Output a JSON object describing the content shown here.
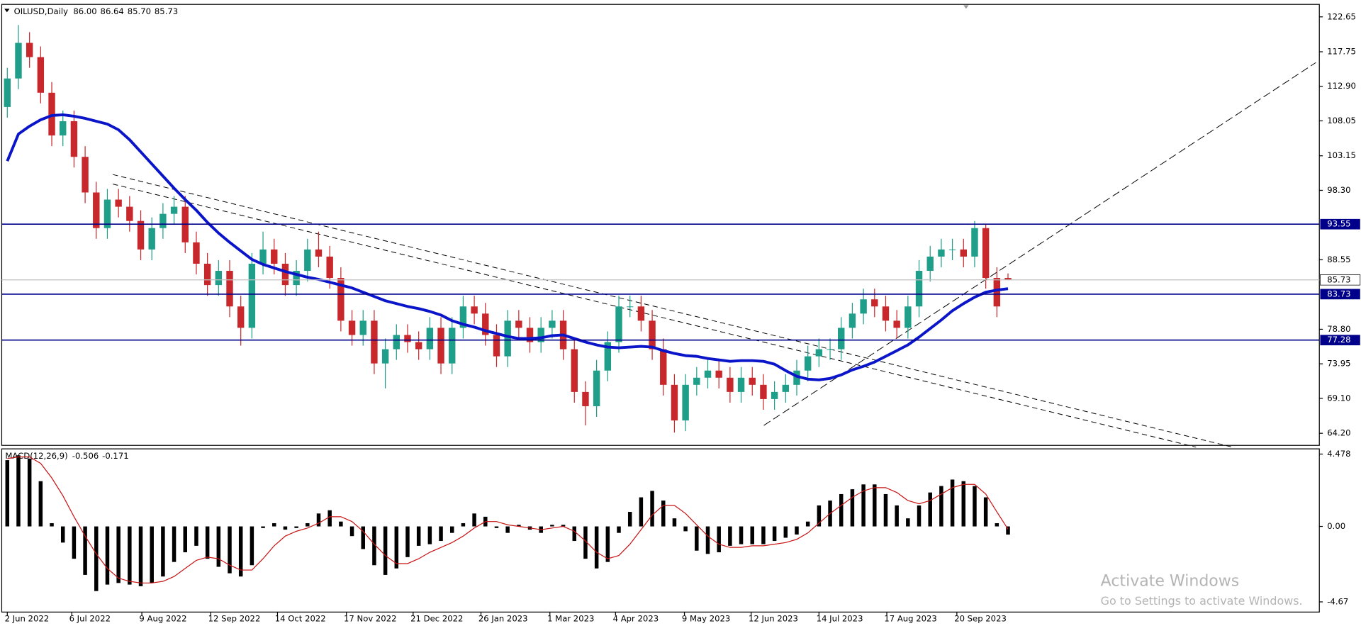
{
  "chart_data": [
    {
      "type": "candlestick",
      "title": "OILUSD,Daily",
      "last_bar_labels": [
        "86.00",
        "86.64",
        "85.70",
        "85.73"
      ],
      "up_color": "#1f9e8a",
      "down_color": "#c8282c",
      "xlim": [
        -0.5,
        118
      ],
      "ylim": [
        62.5,
        124.4
      ],
      "xticks": [
        {
          "value": 0,
          "label": "2 Jun 2022"
        },
        {
          "value": 5.8,
          "label": "6 Jul 2022"
        },
        {
          "value": 12.1,
          "label": "9 Aug 2022"
        },
        {
          "value": 18.3,
          "label": "12 Sep 2022"
        },
        {
          "value": 24.3,
          "label": "14 Oct 2022"
        },
        {
          "value": 30.5,
          "label": "17 Nov 2022"
        },
        {
          "value": 36.5,
          "label": "21 Dec 2022"
        },
        {
          "value": 42.6,
          "label": "26 Jan 2023"
        },
        {
          "value": 48.8,
          "label": "1 Mar 2023"
        },
        {
          "value": 54.7,
          "label": "4 Apr 2023"
        },
        {
          "value": 60.9,
          "label": "9 May 2023"
        },
        {
          "value": 66.9,
          "label": "12 Jun 2023"
        },
        {
          "value": 73.0,
          "label": "14 Jul 2023"
        },
        {
          "value": 79.1,
          "label": "17 Aug 2023"
        },
        {
          "value": 85.4,
          "label": "20 Sep 2023"
        }
      ],
      "yticks": [
        122.65,
        117.75,
        {
          "value": 112.9,
          "label": "112.90"
        },
        108.05,
        103.15,
        {
          "value": 98.3,
          "label": "98.30"
        },
        88.55,
        {
          "value": 78.8,
          "label": "78.80"
        },
        73.95,
        {
          "value": 69.1,
          "label": "69.10"
        },
        {
          "value": 64.2,
          "label": "64.20"
        }
      ],
      "open": [
        110,
        114,
        119,
        117,
        112,
        106,
        108,
        103,
        98,
        93,
        97,
        96,
        94,
        90,
        93,
        95,
        96,
        91,
        88,
        85,
        87,
        82,
        79,
        88,
        90,
        88,
        85,
        87,
        90,
        89,
        86,
        80,
        78,
        80,
        74,
        76,
        78,
        77,
        76,
        79,
        74,
        79,
        82,
        81,
        78,
        75,
        80,
        79,
        77,
        79,
        80,
        76,
        70,
        68,
        73,
        77,
        82,
        82,
        80,
        76,
        71,
        66,
        71,
        72,
        73,
        72,
        70,
        72,
        71,
        69,
        70,
        71,
        73,
        75,
        76,
        76,
        79,
        81,
        83,
        82,
        80,
        79,
        82,
        87,
        89,
        90,
        90,
        89,
        93,
        86,
        86.0
      ],
      "high": [
        115.5,
        121.5,
        120.5,
        118.5,
        113.5,
        109.5,
        109.5,
        104.5,
        99.5,
        98.5,
        98.5,
        97.5,
        95.5,
        94.5,
        96.5,
        97.5,
        97.5,
        92.5,
        89.5,
        88.5,
        88.5,
        83.5,
        89.5,
        92.5,
        91.5,
        89.5,
        88.5,
        91.5,
        92.5,
        90.5,
        87.5,
        81.5,
        81.5,
        81.5,
        77.5,
        79.5,
        79.5,
        78.5,
        80.5,
        80.5,
        80.5,
        83.5,
        83.5,
        82.5,
        79.5,
        81.5,
        81.5,
        80.5,
        80.5,
        81.5,
        81.5,
        77.5,
        71.5,
        74.5,
        78.5,
        83.5,
        83.5,
        83.5,
        81.5,
        77.5,
        72.5,
        72.5,
        73.5,
        74.5,
        74.5,
        73.5,
        73.5,
        73.5,
        72.5,
        71.5,
        72.5,
        74.5,
        76.5,
        77.5,
        77.5,
        80.5,
        82.5,
        84.5,
        84.5,
        83.5,
        81.5,
        83.5,
        88.5,
        90.5,
        91.5,
        91.5,
        91.5,
        94,
        93.5,
        87.5,
        86.64
      ],
      "low": [
        108.5,
        112.5,
        115.5,
        110.5,
        104.5,
        104.5,
        101.5,
        96.5,
        91.5,
        91.5,
        94.5,
        92.5,
        88.5,
        88.5,
        91.5,
        93.5,
        89.5,
        86.5,
        83.5,
        83.5,
        80.5,
        76.5,
        77.5,
        86.5,
        86.5,
        83.5,
        83.5,
        85.5,
        87.5,
        84.5,
        78.5,
        76.5,
        76.5,
        72.5,
        70.5,
        74.5,
        75.5,
        74.5,
        74.5,
        72.5,
        72.5,
        77.5,
        79.5,
        76.5,
        73.5,
        73.5,
        77.5,
        75.5,
        75.5,
        77.5,
        74.5,
        68.5,
        65.3,
        66.5,
        71.5,
        75.5,
        80.5,
        78.5,
        74.5,
        69.5,
        64.3,
        64.5,
        69.5,
        70.5,
        70.5,
        68.5,
        68.5,
        69.5,
        67.5,
        67.5,
        68.5,
        69.5,
        71.5,
        73.5,
        74.5,
        74.5,
        77.5,
        79.5,
        80.5,
        78.5,
        77.5,
        77.5,
        80.5,
        85.5,
        87.5,
        88.5,
        87.5,
        87.5,
        84.5,
        80.5,
        85.7
      ],
      "close": [
        114,
        119,
        117,
        112,
        106,
        108,
        103,
        98,
        93,
        97,
        96,
        94,
        90,
        93,
        95,
        96,
        91,
        88,
        85,
        87,
        82,
        79,
        88,
        90,
        88,
        85,
        87,
        90,
        89,
        86,
        80,
        78,
        80,
        74,
        76,
        78,
        77,
        76,
        79,
        74,
        79,
        82,
        81,
        78,
        75,
        80,
        79,
        77,
        79,
        80,
        76,
        70,
        68,
        73,
        77,
        82,
        82,
        80,
        76,
        71,
        66,
        71,
        72,
        73,
        72,
        70,
        72,
        71,
        69,
        70,
        71,
        73,
        75,
        76,
        76,
        79,
        81,
        83,
        82,
        80,
        79,
        82,
        87,
        89,
        90,
        90,
        89,
        93,
        86,
        82,
        85.73
      ],
      "ma": {
        "color": "#0a14c8",
        "values": [
          102.4,
          106.2,
          107.3,
          108.2,
          108.8,
          108.9,
          108.7,
          108.4,
          108.0,
          107.6,
          106.8,
          105.4,
          103.7,
          102.0,
          100.3,
          98.6,
          97.0,
          95.5,
          93.8,
          92.3,
          91.0,
          89.8,
          88.6,
          87.9,
          87.4,
          86.9,
          86.5,
          86.1,
          85.8,
          85.4,
          85.0,
          84.6,
          84.0,
          83.4,
          82.8,
          82.4,
          82.0,
          81.7,
          81.3,
          80.8,
          80.0,
          79.5,
          79.1,
          78.6,
          78.2,
          77.8,
          77.5,
          77.5,
          77.6,
          77.9,
          78.0,
          77.5,
          77.0,
          76.6,
          76.3,
          76.2,
          76.3,
          76.4,
          76.3,
          75.8,
          75.4,
          75.1,
          75.0,
          74.7,
          74.5,
          74.3,
          74.4,
          74.4,
          74.3,
          73.9,
          73.0,
          72.2,
          71.8,
          71.7,
          71.9,
          72.4,
          73.1,
          73.6,
          74.2,
          75.0,
          75.8,
          76.6,
          77.7,
          78.9,
          80.1,
          81.4,
          82.4,
          83.3,
          84.0,
          84.3,
          84.5
        ]
      },
      "levels": [
        {
          "value": 93.55,
          "color": "#00008b"
        },
        {
          "value": 83.73,
          "color": "#00008b"
        },
        {
          "value": 77.28,
          "color": "#00008b"
        }
      ]
    },
    {
      "type": "macd",
      "title": "MACD(12,26,9)",
      "ylim": [
        -5.3,
        4.8
      ],
      "yticks": [
        4.478,
        {
          "value": 0,
          "label": "0.00"
        },
        -4.67
      ],
      "histogram": {
        "color": "#000000",
        "values": [
          4.1,
          4.4,
          4.2,
          2.8,
          0.2,
          -1.0,
          -2.0,
          -3.0,
          -4.0,
          -3.6,
          -3.5,
          -3.6,
          -3.7,
          -3.5,
          -3.1,
          -2.2,
          -1.6,
          -1.2,
          -2.0,
          -2.5,
          -2.9,
          -3.1,
          -2.4,
          -0.1,
          0.2,
          -0.2,
          -0.1,
          0.2,
          0.8,
          1.0,
          0.3,
          -0.6,
          -1.4,
          -2.4,
          -3.0,
          -2.6,
          -1.9,
          -1.2,
          -1.1,
          -0.9,
          -0.4,
          0.2,
          0.8,
          0.6,
          -0.1,
          -0.4,
          0.1,
          -0.2,
          -0.4,
          0.1,
          0.1,
          -0.9,
          -2.0,
          -2.6,
          -2.2,
          -0.4,
          0.9,
          1.8,
          2.2,
          1.6,
          0.5,
          -0.3,
          -1.5,
          -1.7,
          -1.6,
          -1.2,
          -1.1,
          -1.1,
          -1.1,
          -0.9,
          -0.7,
          -0.5,
          0.3,
          1.3,
          1.6,
          2.0,
          2.3,
          2.6,
          2.6,
          2.0,
          1.3,
          0.5,
          1.3,
          2.1,
          2.5,
          2.9,
          2.8,
          2.5,
          1.8,
          0.2,
          -0.506
        ]
      },
      "signal": {
        "color": "#c81414",
        "values": [
          4.2,
          4.3,
          4.3,
          3.9,
          3.0,
          1.9,
          0.6,
          -0.6,
          -1.7,
          -2.6,
          -3.2,
          -3.4,
          -3.5,
          -3.5,
          -3.4,
          -3.1,
          -2.6,
          -2.1,
          -1.9,
          -2.0,
          -2.4,
          -2.7,
          -2.7,
          -2.0,
          -1.2,
          -0.6,
          -0.3,
          -0.1,
          0.2,
          0.6,
          0.6,
          0.3,
          -0.3,
          -1.1,
          -1.8,
          -2.3,
          -2.3,
          -2.0,
          -1.6,
          -1.3,
          -1.0,
          -0.6,
          -0.1,
          0.3,
          0.3,
          0.1,
          0.0,
          -0.1,
          -0.2,
          -0.1,
          0.0,
          -0.3,
          -0.9,
          -1.6,
          -2.0,
          -1.8,
          -1.1,
          -0.2,
          0.7,
          1.3,
          1.3,
          0.8,
          0.1,
          -0.6,
          -1.1,
          -1.3,
          -1.3,
          -1.2,
          -1.2,
          -1.1,
          -1.0,
          -0.8,
          -0.4,
          0.2,
          0.8,
          1.3,
          1.8,
          2.2,
          2.4,
          2.4,
          2.1,
          1.6,
          1.4,
          1.6,
          2.0,
          2.4,
          2.6,
          2.6,
          2.0,
          0.9,
          -0.171
        ]
      }
    }
  ],
  "watermark": {
    "title": "Activate Windows",
    "subtitle": "Go to Settings to activate Windows."
  }
}
